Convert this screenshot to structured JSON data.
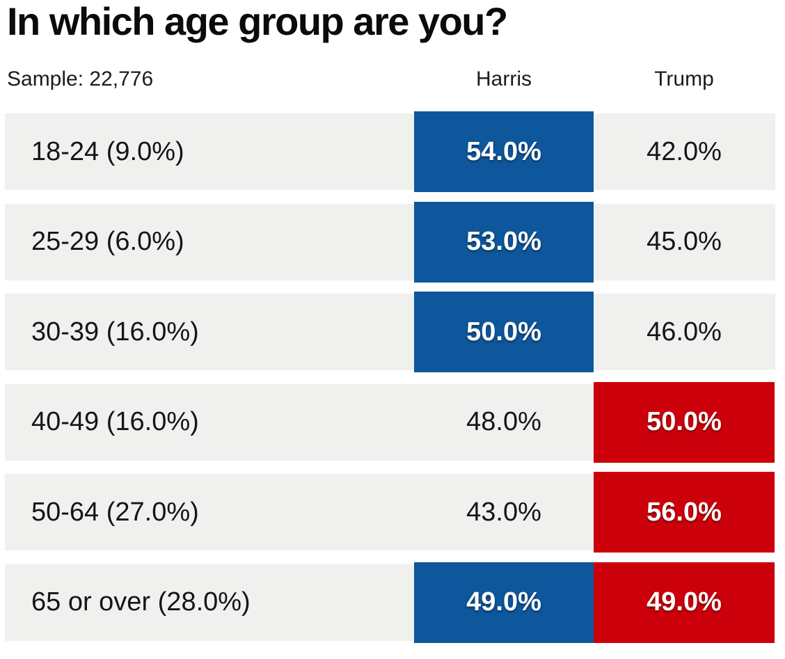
{
  "title": "In which age group are you?",
  "sample_label": "Sample: 22,776",
  "columns": {
    "harris": "Harris",
    "trump": "Trump"
  },
  "colors": {
    "harris_blue": "#0e579c",
    "trump_red": "#cc000a",
    "row_bg": "#f0f0ee"
  },
  "chart_data": {
    "type": "table",
    "title": "In which age group are you?",
    "sample_size": 22776,
    "series_names": [
      "Harris",
      "Trump"
    ],
    "rows": [
      {
        "label": "18-24 (9.0%)",
        "group": "18-24",
        "group_share_pct": 9.0,
        "harris": "54.0%",
        "trump": "42.0%",
        "harris_pct": 54.0,
        "trump_pct": 42.0,
        "harris_win": true,
        "trump_win": false
      },
      {
        "label": "25-29 (6.0%)",
        "group": "25-29",
        "group_share_pct": 6.0,
        "harris": "53.0%",
        "trump": "45.0%",
        "harris_pct": 53.0,
        "trump_pct": 45.0,
        "harris_win": true,
        "trump_win": false
      },
      {
        "label": "30-39 (16.0%)",
        "group": "30-39",
        "group_share_pct": 16.0,
        "harris": "50.0%",
        "trump": "46.0%",
        "harris_pct": 50.0,
        "trump_pct": 46.0,
        "harris_win": true,
        "trump_win": false
      },
      {
        "label": "40-49 (16.0%)",
        "group": "40-49",
        "group_share_pct": 16.0,
        "harris": "48.0%",
        "trump": "50.0%",
        "harris_pct": 48.0,
        "trump_pct": 50.0,
        "harris_win": false,
        "trump_win": true
      },
      {
        "label": "50-64 (27.0%)",
        "group": "50-64",
        "group_share_pct": 27.0,
        "harris": "43.0%",
        "trump": "56.0%",
        "harris_pct": 43.0,
        "trump_pct": 56.0,
        "harris_win": false,
        "trump_win": true
      },
      {
        "label": "65 or over (28.0%)",
        "group": "65 or over",
        "group_share_pct": 28.0,
        "harris": "49.0%",
        "trump": "49.0%",
        "harris_pct": 49.0,
        "trump_pct": 49.0,
        "harris_win": true,
        "trump_win": true
      }
    ]
  }
}
